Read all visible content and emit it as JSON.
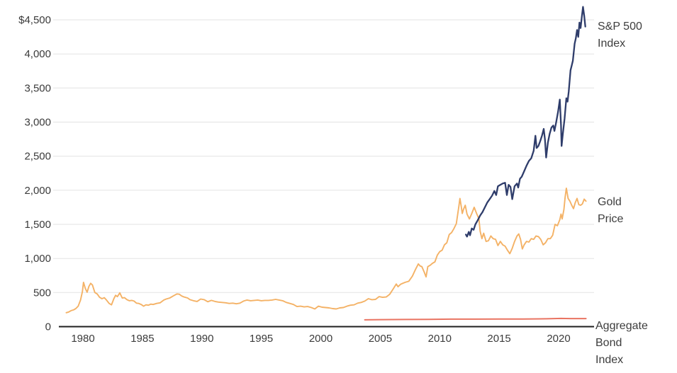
{
  "chart_data": {
    "type": "line",
    "title": "",
    "xlabel": "",
    "ylabel": "",
    "grid": "horizontal",
    "legend_position": "right-of-line-ends",
    "x_axis": {
      "range": [
        1978,
        2022.8
      ],
      "tick_values": [
        1980,
        1985,
        1990,
        1995,
        2000,
        2005,
        2010,
        2015,
        2020
      ],
      "tick_labels": [
        "1980",
        "1985",
        "1990",
        "1995",
        "2000",
        "2005",
        "2010",
        "2015",
        "2020"
      ]
    },
    "y_axis": {
      "range": [
        0,
        4500
      ],
      "tick_values": [
        0,
        500,
        1000,
        1500,
        2000,
        2500,
        3000,
        3500,
        4000,
        4500
      ],
      "tick_labels": [
        "0",
        "500",
        "1,000",
        "1,500",
        "2,000",
        "2,500",
        "3,000",
        "3,500",
        "4,000",
        "$4,500"
      ]
    },
    "colors": {
      "sp500": "#2f3d6b",
      "gold": "#f4b266",
      "bond": "#e97462",
      "grid": "#e3e3e3",
      "axis": "#1f1f1f",
      "text": "#3b3b3b"
    },
    "series": [
      {
        "name": "bond",
        "label": "Aggregate\nBond\nIndex",
        "color": "#e97462",
        "width": 2,
        "points": [
          [
            2003.7,
            100
          ],
          [
            2005,
            103
          ],
          [
            2007,
            105
          ],
          [
            2009,
            107
          ],
          [
            2011,
            110
          ],
          [
            2013,
            110
          ],
          [
            2015,
            111
          ],
          [
            2017,
            112
          ],
          [
            2019,
            115
          ],
          [
            2020.2,
            120
          ],
          [
            2021,
            118
          ],
          [
            2022.3,
            118
          ]
        ]
      },
      {
        "name": "gold",
        "label": "Gold\nPrice",
        "color": "#f4b266",
        "width": 1.9,
        "points": [
          [
            1978.6,
            205
          ],
          [
            1978.8,
            215
          ],
          [
            1979.0,
            235
          ],
          [
            1979.2,
            245
          ],
          [
            1979.4,
            265
          ],
          [
            1979.6,
            300
          ],
          [
            1979.8,
            390
          ],
          [
            1979.95,
            512
          ],
          [
            1980.05,
            650
          ],
          [
            1980.2,
            560
          ],
          [
            1980.35,
            505
          ],
          [
            1980.5,
            590
          ],
          [
            1980.65,
            635
          ],
          [
            1980.8,
            610
          ],
          [
            1981.0,
            500
          ],
          [
            1981.2,
            480
          ],
          [
            1981.4,
            430
          ],
          [
            1981.6,
            410
          ],
          [
            1981.8,
            425
          ],
          [
            1982.0,
            385
          ],
          [
            1982.2,
            340
          ],
          [
            1982.4,
            320
          ],
          [
            1982.6,
            410
          ],
          [
            1982.75,
            460
          ],
          [
            1982.9,
            440
          ],
          [
            1983.1,
            495
          ],
          [
            1983.3,
            420
          ],
          [
            1983.5,
            425
          ],
          [
            1983.7,
            395
          ],
          [
            1983.9,
            380
          ],
          [
            1984.1,
            385
          ],
          [
            1984.3,
            375
          ],
          [
            1984.5,
            345
          ],
          [
            1984.7,
            340
          ],
          [
            1984.9,
            325
          ],
          [
            1985.1,
            300
          ],
          [
            1985.3,
            320
          ],
          [
            1985.5,
            315
          ],
          [
            1985.7,
            330
          ],
          [
            1985.9,
            325
          ],
          [
            1986.2,
            340
          ],
          [
            1986.5,
            350
          ],
          [
            1986.8,
            390
          ],
          [
            1987.0,
            405
          ],
          [
            1987.3,
            420
          ],
          [
            1987.6,
            450
          ],
          [
            1987.9,
            480
          ],
          [
            1988.1,
            475
          ],
          [
            1988.3,
            450
          ],
          [
            1988.5,
            435
          ],
          [
            1988.8,
            420
          ],
          [
            1989.0,
            395
          ],
          [
            1989.3,
            380
          ],
          [
            1989.6,
            370
          ],
          [
            1989.9,
            405
          ],
          [
            1990.2,
            395
          ],
          [
            1990.5,
            365
          ],
          [
            1990.8,
            385
          ],
          [
            1991.1,
            370
          ],
          [
            1991.4,
            360
          ],
          [
            1991.7,
            355
          ],
          [
            1992.0,
            350
          ],
          [
            1992.3,
            340
          ],
          [
            1992.6,
            345
          ],
          [
            1992.9,
            335
          ],
          [
            1993.2,
            345
          ],
          [
            1993.5,
            375
          ],
          [
            1993.8,
            390
          ],
          [
            1994.1,
            380
          ],
          [
            1994.4,
            385
          ],
          [
            1994.7,
            390
          ],
          [
            1995.0,
            380
          ],
          [
            1995.3,
            385
          ],
          [
            1995.6,
            385
          ],
          [
            1995.9,
            390
          ],
          [
            1996.2,
            400
          ],
          [
            1996.5,
            390
          ],
          [
            1996.8,
            380
          ],
          [
            1997.1,
            355
          ],
          [
            1997.4,
            340
          ],
          [
            1997.7,
            325
          ],
          [
            1998.0,
            295
          ],
          [
            1998.3,
            300
          ],
          [
            1998.6,
            290
          ],
          [
            1998.9,
            295
          ],
          [
            1999.2,
            280
          ],
          [
            1999.5,
            260
          ],
          [
            1999.8,
            300
          ],
          [
            2000.1,
            285
          ],
          [
            2000.4,
            280
          ],
          [
            2000.7,
            275
          ],
          [
            2001.0,
            265
          ],
          [
            2001.3,
            260
          ],
          [
            2001.6,
            275
          ],
          [
            2001.9,
            280
          ],
          [
            2002.2,
            300
          ],
          [
            2002.5,
            315
          ],
          [
            2002.8,
            320
          ],
          [
            2003.1,
            345
          ],
          [
            2003.4,
            355
          ],
          [
            2003.7,
            375
          ],
          [
            2004.0,
            410
          ],
          [
            2004.3,
            395
          ],
          [
            2004.6,
            400
          ],
          [
            2004.9,
            440
          ],
          [
            2005.2,
            430
          ],
          [
            2005.5,
            435
          ],
          [
            2005.8,
            475
          ],
          [
            2006.1,
            555
          ],
          [
            2006.35,
            625
          ],
          [
            2006.5,
            585
          ],
          [
            2006.7,
            620
          ],
          [
            2006.9,
            635
          ],
          [
            2007.1,
            650
          ],
          [
            2007.4,
            665
          ],
          [
            2007.7,
            740
          ],
          [
            2007.95,
            835
          ],
          [
            2008.2,
            920
          ],
          [
            2008.35,
            890
          ],
          [
            2008.5,
            880
          ],
          [
            2008.7,
            800
          ],
          [
            2008.85,
            730
          ],
          [
            2009.0,
            880
          ],
          [
            2009.2,
            900
          ],
          [
            2009.4,
            930
          ],
          [
            2009.6,
            950
          ],
          [
            2009.8,
            1050
          ],
          [
            2010.0,
            1100
          ],
          [
            2010.2,
            1120
          ],
          [
            2010.4,
            1200
          ],
          [
            2010.6,
            1230
          ],
          [
            2010.8,
            1350
          ],
          [
            2011.0,
            1380
          ],
          [
            2011.2,
            1440
          ],
          [
            2011.4,
            1510
          ],
          [
            2011.6,
            1750
          ],
          [
            2011.7,
            1880
          ],
          [
            2011.8,
            1780
          ],
          [
            2011.9,
            1660
          ],
          [
            2012.0,
            1720
          ],
          [
            2012.15,
            1780
          ],
          [
            2012.3,
            1650
          ],
          [
            2012.5,
            1580
          ],
          [
            2012.7,
            1660
          ],
          [
            2012.9,
            1750
          ],
          [
            2013.1,
            1660
          ],
          [
            2013.3,
            1580
          ],
          [
            2013.4,
            1400
          ],
          [
            2013.55,
            1290
          ],
          [
            2013.7,
            1370
          ],
          [
            2013.9,
            1250
          ],
          [
            2014.1,
            1260
          ],
          [
            2014.3,
            1330
          ],
          [
            2014.5,
            1290
          ],
          [
            2014.7,
            1280
          ],
          [
            2014.9,
            1190
          ],
          [
            2015.1,
            1250
          ],
          [
            2015.3,
            1200
          ],
          [
            2015.5,
            1180
          ],
          [
            2015.7,
            1120
          ],
          [
            2015.9,
            1070
          ],
          [
            2016.1,
            1150
          ],
          [
            2016.3,
            1250
          ],
          [
            2016.5,
            1330
          ],
          [
            2016.65,
            1360
          ],
          [
            2016.8,
            1280
          ],
          [
            2016.95,
            1140
          ],
          [
            2017.1,
            1200
          ],
          [
            2017.3,
            1250
          ],
          [
            2017.5,
            1240
          ],
          [
            2017.7,
            1290
          ],
          [
            2017.9,
            1280
          ],
          [
            2018.1,
            1330
          ],
          [
            2018.3,
            1320
          ],
          [
            2018.5,
            1280
          ],
          [
            2018.7,
            1200
          ],
          [
            2018.9,
            1230
          ],
          [
            2019.1,
            1290
          ],
          [
            2019.3,
            1290
          ],
          [
            2019.5,
            1340
          ],
          [
            2019.7,
            1500
          ],
          [
            2019.9,
            1480
          ],
          [
            2020.1,
            1570
          ],
          [
            2020.2,
            1650
          ],
          [
            2020.3,
            1580
          ],
          [
            2020.45,
            1720
          ],
          [
            2020.55,
            1900
          ],
          [
            2020.65,
            2030
          ],
          [
            2020.8,
            1880
          ],
          [
            2020.95,
            1840
          ],
          [
            2021.1,
            1780
          ],
          [
            2021.25,
            1730
          ],
          [
            2021.4,
            1820
          ],
          [
            2021.55,
            1880
          ],
          [
            2021.7,
            1790
          ],
          [
            2021.85,
            1780
          ],
          [
            2022.0,
            1800
          ],
          [
            2022.15,
            1870
          ],
          [
            2022.3,
            1840
          ]
        ]
      },
      {
        "name": "sp500",
        "label": "S&P 500\nIndex",
        "color": "#2f3d6b",
        "width": 2.3,
        "points": [
          [
            2012.2,
            1350
          ],
          [
            2012.3,
            1320
          ],
          [
            2012.45,
            1390
          ],
          [
            2012.55,
            1340
          ],
          [
            2012.7,
            1440
          ],
          [
            2012.85,
            1420
          ],
          [
            2013.0,
            1500
          ],
          [
            2013.2,
            1560
          ],
          [
            2013.4,
            1630
          ],
          [
            2013.6,
            1680
          ],
          [
            2013.8,
            1750
          ],
          [
            2014.0,
            1820
          ],
          [
            2014.2,
            1870
          ],
          [
            2014.4,
            1920
          ],
          [
            2014.6,
            1990
          ],
          [
            2014.75,
            1930
          ],
          [
            2014.9,
            2060
          ],
          [
            2015.1,
            2080
          ],
          [
            2015.3,
            2100
          ],
          [
            2015.5,
            2110
          ],
          [
            2015.65,
            1930
          ],
          [
            2015.8,
            2080
          ],
          [
            2015.95,
            2050
          ],
          [
            2016.1,
            1870
          ],
          [
            2016.3,
            2060
          ],
          [
            2016.5,
            2100
          ],
          [
            2016.6,
            2040
          ],
          [
            2016.75,
            2170
          ],
          [
            2016.9,
            2200
          ],
          [
            2017.1,
            2280
          ],
          [
            2017.3,
            2360
          ],
          [
            2017.5,
            2430
          ],
          [
            2017.7,
            2470
          ],
          [
            2017.9,
            2580
          ],
          [
            2018.05,
            2800
          ],
          [
            2018.15,
            2620
          ],
          [
            2018.3,
            2650
          ],
          [
            2018.45,
            2720
          ],
          [
            2018.6,
            2800
          ],
          [
            2018.75,
            2900
          ],
          [
            2018.85,
            2750
          ],
          [
            2018.95,
            2480
          ],
          [
            2019.1,
            2700
          ],
          [
            2019.25,
            2830
          ],
          [
            2019.4,
            2920
          ],
          [
            2019.55,
            2950
          ],
          [
            2019.65,
            2870
          ],
          [
            2019.8,
            3000
          ],
          [
            2019.95,
            3150
          ],
          [
            2020.1,
            3330
          ],
          [
            2020.2,
            2950
          ],
          [
            2020.25,
            2650
          ],
          [
            2020.35,
            2820
          ],
          [
            2020.5,
            3050
          ],
          [
            2020.65,
            3350
          ],
          [
            2020.75,
            3300
          ],
          [
            2020.85,
            3450
          ],
          [
            2021.0,
            3760
          ],
          [
            2021.1,
            3830
          ],
          [
            2021.2,
            3900
          ],
          [
            2021.35,
            4150
          ],
          [
            2021.45,
            4230
          ],
          [
            2021.55,
            4350
          ],
          [
            2021.65,
            4250
          ],
          [
            2021.75,
            4460
          ],
          [
            2021.85,
            4380
          ],
          [
            2021.95,
            4540
          ],
          [
            2022.05,
            4690
          ],
          [
            2022.15,
            4560
          ],
          [
            2022.25,
            4400
          ]
        ]
      }
    ]
  }
}
